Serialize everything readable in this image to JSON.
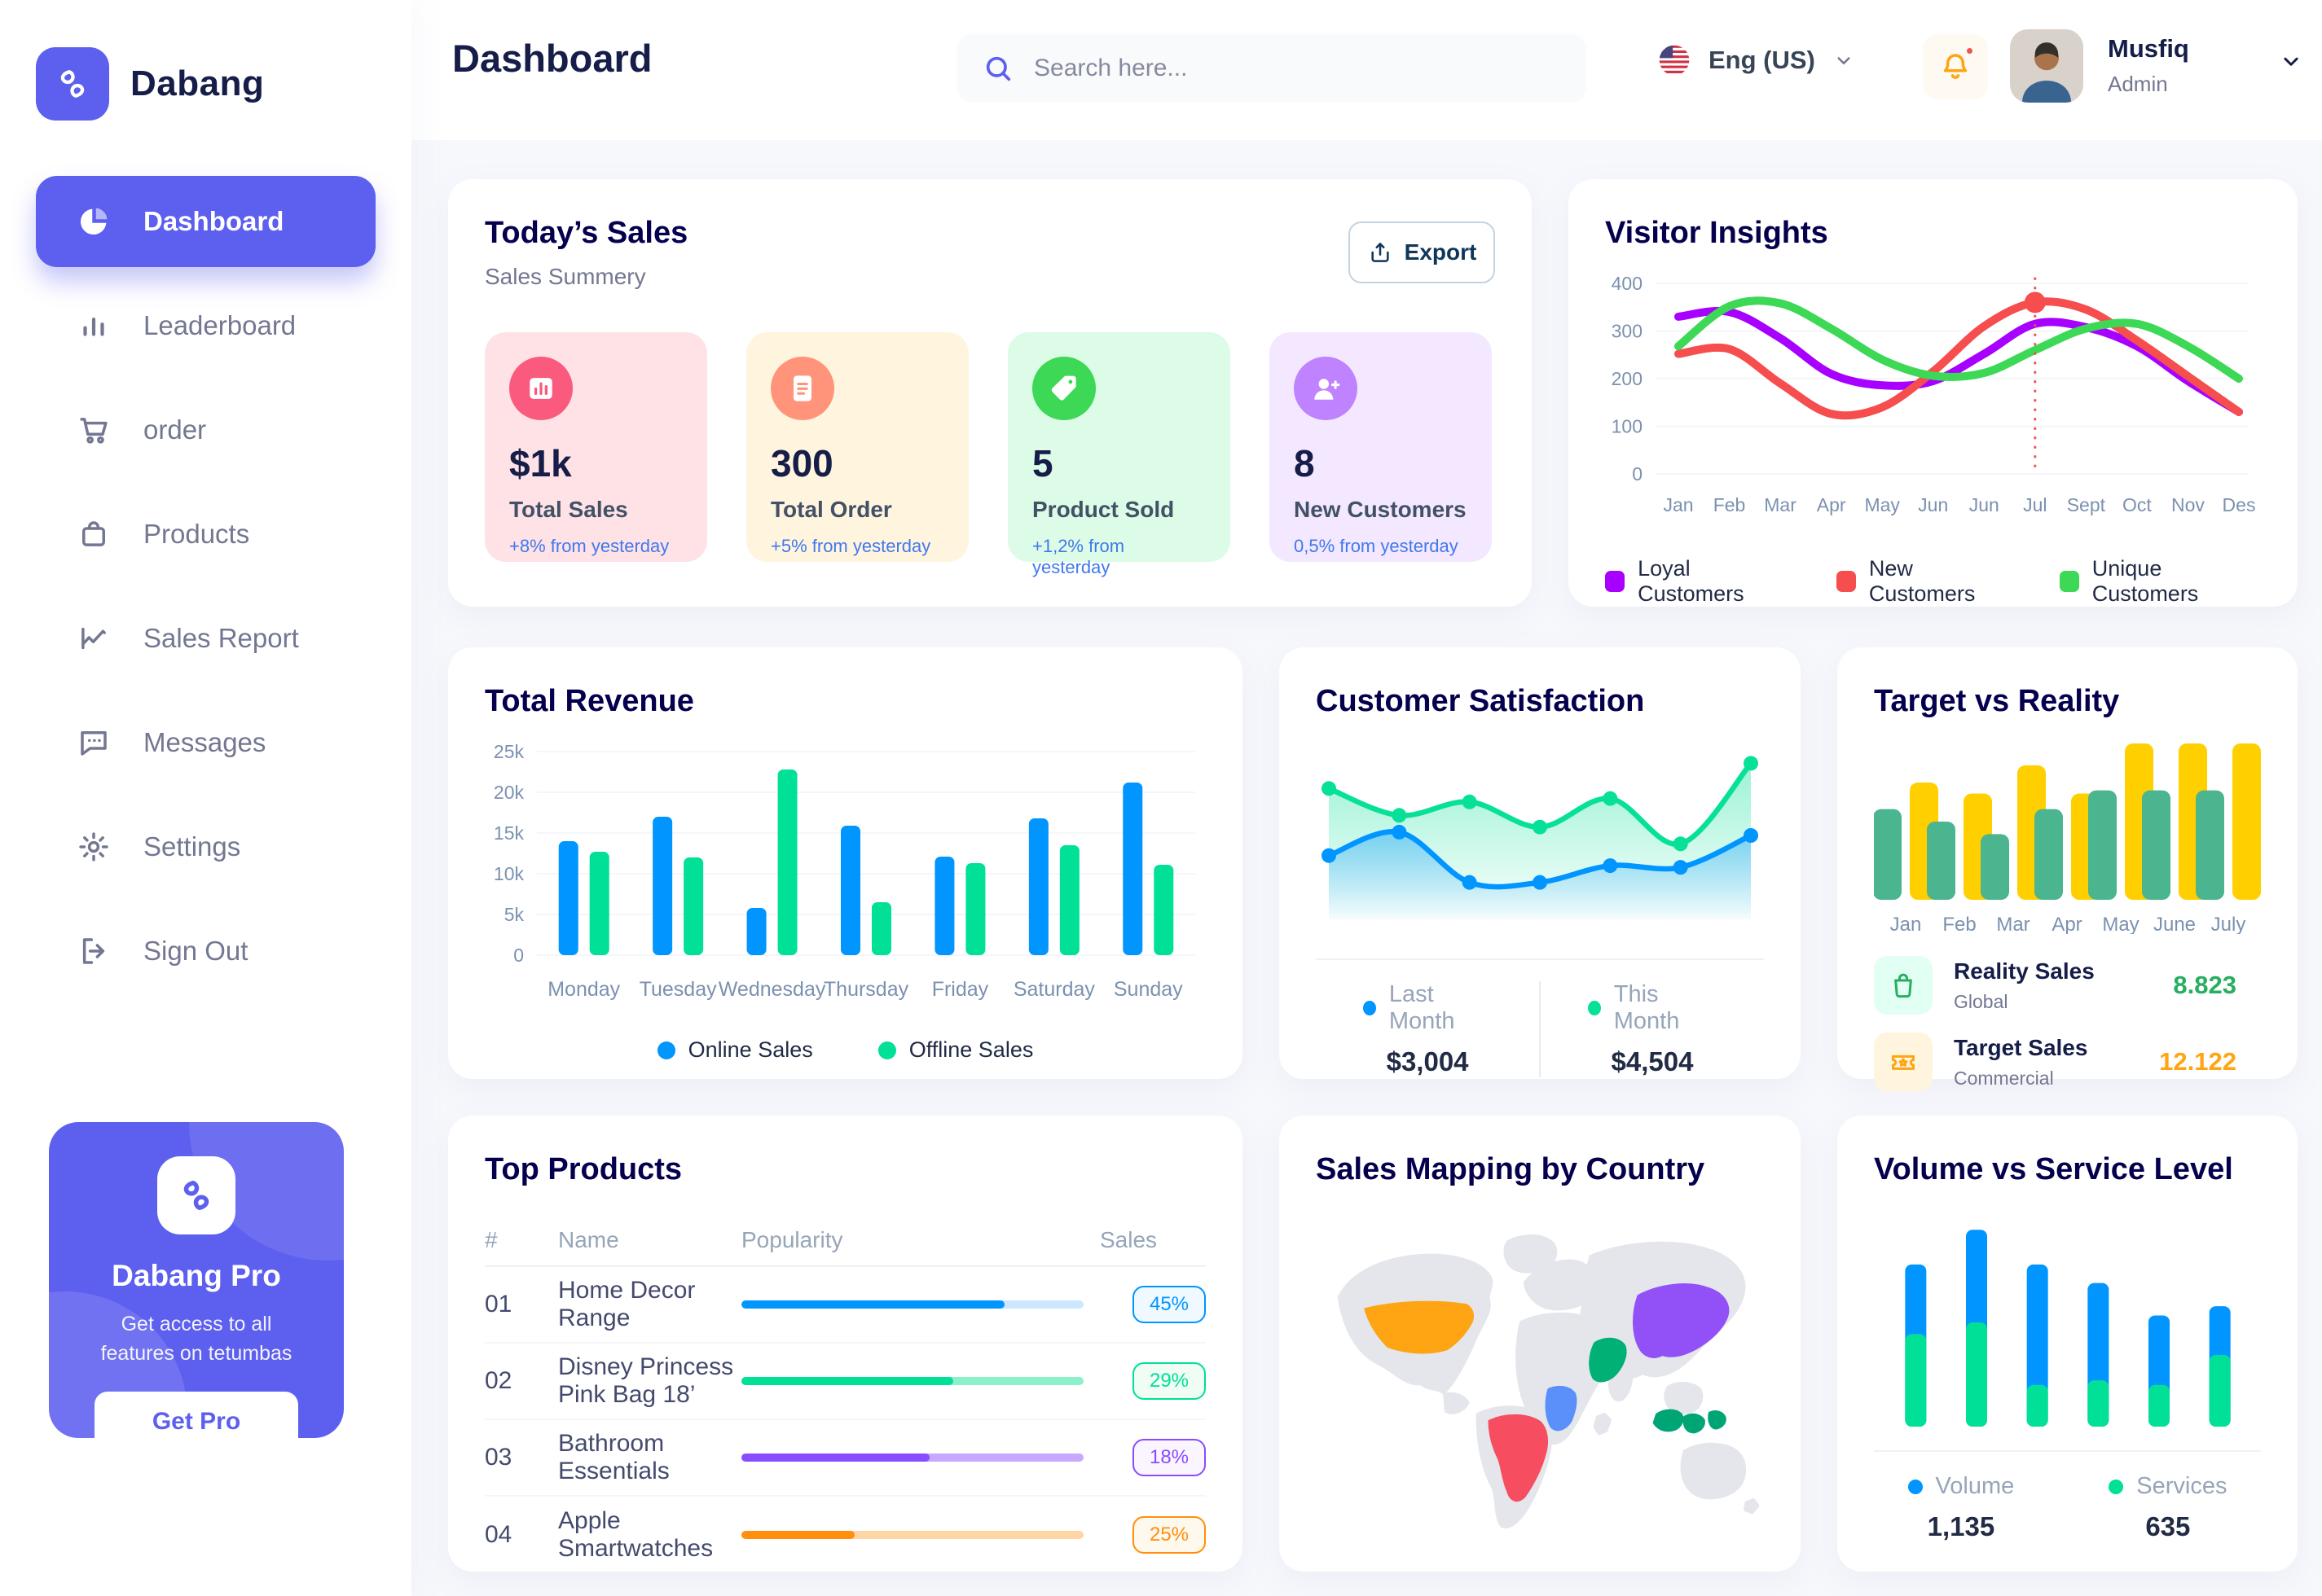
{
  "app": {
    "brand": "Dabang"
  },
  "header": {
    "title": "Dashboard",
    "search_placeholder": "Search here...",
    "language": "Eng (US)",
    "user": {
      "name": "Musfiq",
      "role": "Admin"
    }
  },
  "sidebar": {
    "items": [
      {
        "label": "Dashboard",
        "icon": "dashboard",
        "active": true
      },
      {
        "label": "Leaderboard",
        "icon": "leaderboard",
        "active": false
      },
      {
        "label": "order",
        "icon": "order",
        "active": false
      },
      {
        "label": "Products",
        "icon": "products",
        "active": false
      },
      {
        "label": "Sales Report",
        "icon": "sales-report",
        "active": false
      },
      {
        "label": "Messages",
        "icon": "messages",
        "active": false
      },
      {
        "label": "Settings",
        "icon": "settings",
        "active": false
      },
      {
        "label": "Sign Out",
        "icon": "signout",
        "active": false
      }
    ],
    "pro": {
      "title": "Dabang Pro",
      "description": "Get access to all features on tetumbas",
      "cta": "Get Pro"
    }
  },
  "today_sales": {
    "title": "Today’s Sales",
    "subtitle": "Sales Summery",
    "export_label": "Export",
    "cards": [
      {
        "value": "$1k",
        "label": "Total Sales",
        "delta": "+8% from yesterday",
        "bg": "#FFE2E5",
        "icon_bg": "#FA5A7D",
        "icon": "bar-chart"
      },
      {
        "value": "300",
        "label": "Total Order",
        "delta": "+5% from yesterday",
        "bg": "#FFF4DE",
        "icon_bg": "#FF947A",
        "icon": "order-file"
      },
      {
        "value": "5",
        "label": "Product Sold",
        "delta": "+1,2% from yesterday",
        "bg": "#DCFCE7",
        "icon_bg": "#3CD856",
        "icon": "tag"
      },
      {
        "value": "8",
        "label": "New Customers",
        "delta": "0,5% from yesterday",
        "bg": "#F3E8FF",
        "icon_bg": "#BF83FF",
        "icon": "new-customer"
      }
    ]
  },
  "top_products": {
    "title": "Top Products",
    "columns": [
      "#",
      "Name",
      "Popularity",
      "Sales"
    ],
    "rows": [
      {
        "num": "01",
        "name": "Home Decor Range",
        "popularity_pct": 77,
        "sales": "45%",
        "color": "#0095FF",
        "color_light": "#CDE7FF",
        "badge_bg": "#F0F9FF"
      },
      {
        "num": "02",
        "name": "Disney Princess Pink Bag 18’",
        "popularity_pct": 62,
        "sales": "29%",
        "color": "#00E096",
        "color_light": "#8CF1CB",
        "badge_bg": "#F0FDF4"
      },
      {
        "num": "03",
        "name": "Bathroom Essentials",
        "popularity_pct": 55,
        "sales": "18%",
        "color": "#884DFF",
        "color_light": "#C7A8FF",
        "badge_bg": "#FBF5FF"
      },
      {
        "num": "04",
        "name": "Apple Smartwatches",
        "popularity_pct": 33,
        "sales": "25%",
        "color": "#FF8F0D",
        "color_light": "#FFD5A4",
        "badge_bg": "#FFF8EC"
      }
    ]
  },
  "map": {
    "title": "Sales Mapping by Country",
    "base_color": "#E4E6EB",
    "regions": [
      {
        "id": "usa",
        "name": "United States",
        "color": "#FFA412"
      },
      {
        "id": "brazil",
        "name": "Brazil",
        "color": "#F64E60"
      },
      {
        "id": "congo",
        "name": "DR Congo",
        "color": "#5B8FF9"
      },
      {
        "id": "saudi",
        "name": "Saudi Arabia",
        "color": "#00B074"
      },
      {
        "id": "china",
        "name": "China",
        "color": "#9251F7"
      },
      {
        "id": "indonesia",
        "name": "Indonesia",
        "color": "#00A576"
      }
    ]
  },
  "chart_data": [
    {
      "id": "visitor-insights",
      "type": "line",
      "title": "Visitor Insights",
      "x": [
        "Jan",
        "Feb",
        "Mar",
        "Apr",
        "May",
        "Jun",
        "Jun",
        "Jul",
        "Sept",
        "Oct",
        "Nov",
        "Des"
      ],
      "ylim": [
        0,
        400
      ],
      "yticks": [
        0,
        100,
        200,
        300,
        400
      ],
      "grid": true,
      "legend_position": "bottom",
      "series": [
        {
          "name": "Loyal Customers",
          "color": "#A700FF",
          "values": [
            330,
            340,
            285,
            210,
            186,
            195,
            252,
            315,
            308,
            268,
            195,
            130
          ]
        },
        {
          "name": "New Customers",
          "color": "#F64E4E",
          "values": [
            252,
            262,
            190,
            126,
            140,
            215,
            310,
            360,
            345,
            280,
            205,
            130
          ]
        },
        {
          "name": "Unique Customers",
          "color": "#3CD856",
          "values": [
            268,
            352,
            358,
            305,
            240,
            206,
            212,
            260,
            305,
            315,
            268,
            200
          ]
        }
      ],
      "marker": {
        "x_index": 7,
        "series_index": 1,
        "value": 360,
        "color": "#F64E4E"
      }
    },
    {
      "id": "total-revenue",
      "type": "bar",
      "title": "Total Revenue",
      "categories": [
        "Monday",
        "Tuesday",
        "Wednesday",
        "Thursday",
        "Friday",
        "Saturday",
        "Sunday"
      ],
      "ylim": [
        0,
        25000
      ],
      "grid": true,
      "legend_position": "bottom",
      "yticks": [
        {
          "v": 0,
          "label": "0"
        },
        {
          "v": 5000,
          "label": "5k"
        },
        {
          "v": 10000,
          "label": "10k"
        },
        {
          "v": 15000,
          "label": "15k"
        },
        {
          "v": 20000,
          "label": "20k"
        },
        {
          "v": 25000,
          "label": "25k"
        }
      ],
      "series": [
        {
          "name": "Online Sales",
          "color": "#0095FF",
          "values": [
            14000,
            17000,
            5800,
            15900,
            12100,
            16800,
            21200
          ]
        },
        {
          "name": "Offline Sales",
          "color": "#00E096",
          "values": [
            12700,
            12000,
            22800,
            6500,
            11300,
            13500,
            11100
          ]
        }
      ]
    },
    {
      "id": "customer-satisfaction",
      "type": "area",
      "title": "Customer Satisfaction",
      "ylim": [
        0,
        100
      ],
      "legend_position": "bottom",
      "series": [
        {
          "name": "Last Month",
          "total": "$3,004",
          "color": "#0095FF",
          "values": [
            38,
            52,
            22,
            22,
            32,
            31,
            50
          ]
        },
        {
          "name": "This Month",
          "total": "$4,504",
          "color": "#07E098",
          "values": [
            78,
            62,
            70,
            55,
            72,
            45,
            93
          ]
        }
      ]
    },
    {
      "id": "target-vs-reality",
      "type": "bar",
      "title": "Target vs Reality",
      "categories": [
        "Jan",
        "Feb",
        "Mar",
        "Apr",
        "May",
        "June",
        "July"
      ],
      "ylim": [
        0,
        10
      ],
      "series": [
        {
          "name": "Reality Sales",
          "color": "#4AB58E",
          "values": [
            5.8,
            5.0,
            4.2,
            5.8,
            7.0,
            7.0,
            7.0
          ]
        },
        {
          "name": "Target Sales",
          "color": "#FFCF00",
          "values": [
            7.5,
            6.8,
            8.6,
            6.8,
            10,
            10,
            10
          ]
        }
      ],
      "summary": [
        {
          "label": "Reality Sales",
          "sub": "Global",
          "value": "8.823",
          "value_color": "#27AE60",
          "icon_bg": "#E2FFF3",
          "icon": "bag"
        },
        {
          "label": "Target Sales",
          "sub": "Commercial",
          "value": "12.122",
          "value_color": "#FFA412",
          "icon_bg": "#FFF4DE",
          "icon": "ticket"
        }
      ]
    },
    {
      "id": "volume-vs-service",
      "type": "stacked-bar",
      "title": "Volume vs Service Level",
      "legend_position": "bottom",
      "series": [
        {
          "name": "Volume",
          "total": "1,135",
          "color": "#0095FF",
          "values": [
            30,
            40,
            52,
            42,
            30,
            21
          ]
        },
        {
          "name": "Services",
          "total": "635",
          "color": "#00E096",
          "values": [
            40,
            45,
            18,
            20,
            18,
            31
          ]
        }
      ]
    }
  ]
}
